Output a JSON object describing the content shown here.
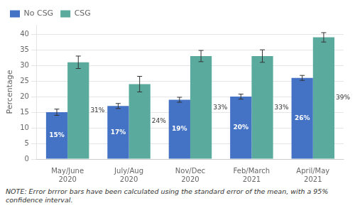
{
  "chart_data": {
    "type": "bar",
    "categories": [
      "May/June\n2020",
      "July/Aug\n2020",
      "Nov/Dec\n2020",
      "Feb/March\n2021",
      "April/May\n2021"
    ],
    "series": [
      {
        "name": "No CSG",
        "color": "#4472c4",
        "values": [
          15,
          17,
          19,
          20,
          26
        ],
        "errors": [
          1.0,
          0.8,
          0.8,
          0.8,
          0.8
        ],
        "value_labels": [
          "15%",
          "17%",
          "19%",
          "20%",
          "26%"
        ]
      },
      {
        "name": "CSG",
        "color": "#5aab9e",
        "values": [
          31,
          24,
          33,
          33,
          39
        ],
        "errors": [
          2.0,
          2.5,
          1.8,
          2.0,
          1.5
        ],
        "value_labels": [
          "31%",
          "24%",
          "33%",
          "33%",
          "39%"
        ]
      }
    ],
    "ylabel": "Percentage",
    "ylim": [
      0,
      43
    ],
    "yticks": [
      0,
      5,
      10,
      15,
      20,
      25,
      30,
      35,
      40
    ],
    "grid": true,
    "legend": "upper left",
    "data_labels": true,
    "note": "NOTE: Error brrror bars have been calculated using the standard error of the mean, with a 95% confidence interval."
  }
}
